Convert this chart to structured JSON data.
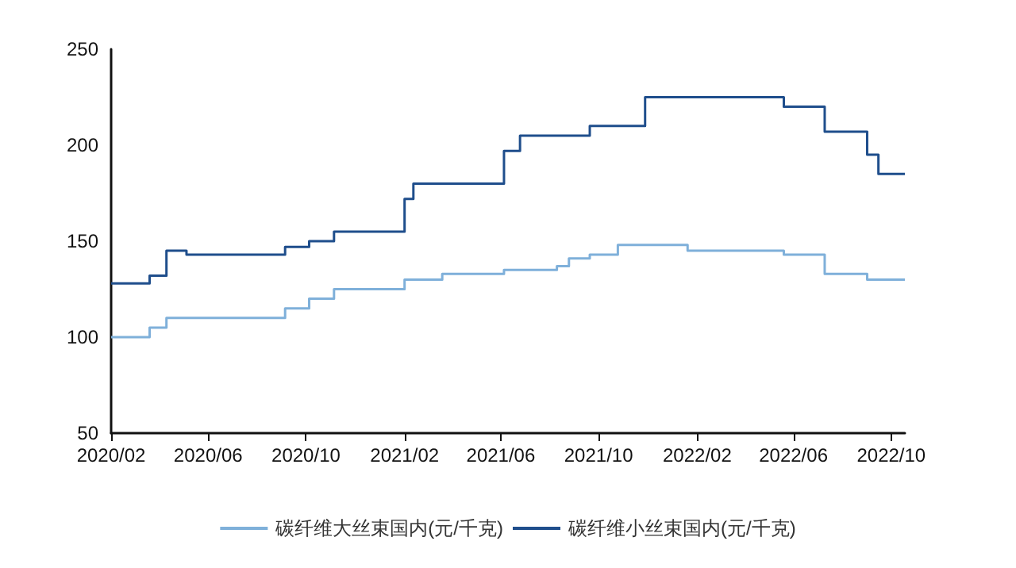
{
  "chart_data": {
    "type": "step",
    "legend": "bottom",
    "grid": false,
    "marker": "none",
    "line_style": "solid",
    "xlim": [
      "2020-02",
      "2022-10-18"
    ],
    "xticks": [
      {
        "value": "2020-02",
        "label": "2020/02"
      },
      {
        "value": "2020-06",
        "label": "2020/06"
      },
      {
        "value": "2020-10",
        "label": "2020/10"
      },
      {
        "value": "2021-02",
        "label": "2021/02"
      },
      {
        "value": "2021-06",
        "label": "2021/06"
      },
      {
        "value": "2021-10",
        "label": "2021/10"
      },
      {
        "value": "2022-02",
        "label": "2022/02"
      },
      {
        "value": "2022-06",
        "label": "2022/06"
      },
      {
        "value": "2022-10",
        "label": "2022/10"
      }
    ],
    "ylim": [
      50,
      250
    ],
    "yticks": [
      50,
      100,
      150,
      200,
      250
    ],
    "series": [
      {
        "name": "碳纤维大丝束国内(元/千克)",
        "color": "#7fb0da",
        "x": [
          "2020-02-01",
          "2020-03-20",
          "2020-04-10",
          "2020-09-05",
          "2020-10-05",
          "2020-11-05",
          "2021-02-01",
          "2021-03-20",
          "2021-06-05",
          "2021-08-10",
          "2021-08-25",
          "2021-09-20",
          "2021-10-25",
          "2022-01-20",
          "2022-05-20",
          "2022-07-10",
          "2022-09-01",
          "2022-10-18"
        ],
        "values": [
          100,
          105,
          110,
          115,
          120,
          125,
          130,
          133,
          135,
          137,
          141,
          143,
          148,
          145,
          143,
          133,
          130,
          130
        ]
      },
      {
        "name": "碳纤维小丝束国内(元/千克)",
        "color": "#1f4e8c",
        "x": [
          "2020-02-01",
          "2020-03-20",
          "2020-04-10",
          "2020-05-05",
          "2020-09-05",
          "2020-10-05",
          "2020-11-05",
          "2021-02-01",
          "2021-02-12",
          "2021-06-05",
          "2021-06-25",
          "2021-09-20",
          "2021-11-28",
          "2022-05-20",
          "2022-07-10",
          "2022-09-01",
          "2022-09-15",
          "2022-10-18"
        ],
        "values": [
          128,
          132,
          145,
          143,
          147,
          150,
          155,
          172,
          180,
          197,
          205,
          210,
          225,
          220,
          207,
          195,
          185,
          185
        ]
      }
    ]
  }
}
